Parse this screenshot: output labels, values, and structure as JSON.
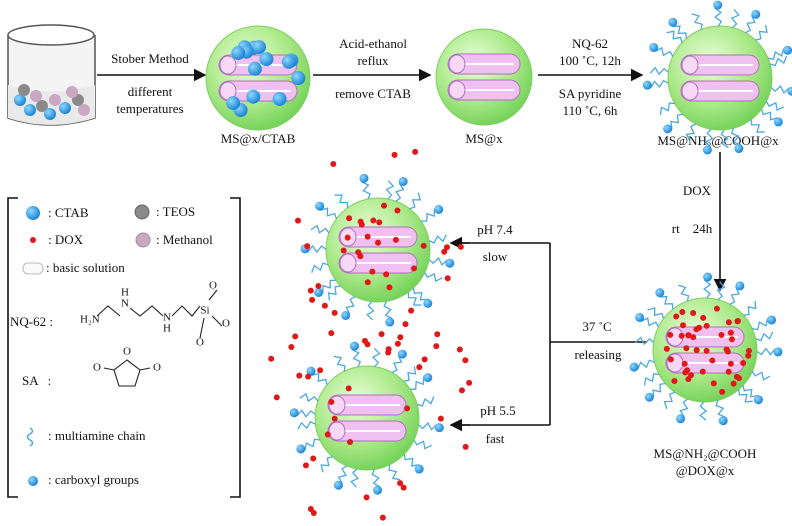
{
  "steps": [
    {
      "above": [
        "Stober Method"
      ],
      "below": [
        "different",
        "temperatures"
      ]
    },
    {
      "above": [
        "Acid-ethanol",
        "reflux"
      ],
      "below": [
        "remove CTAB"
      ]
    },
    {
      "above": [
        "NQ-62",
        "100 ˚C, 12h"
      ],
      "below": [
        "SA pyridine",
        "110 ˚C, 6h"
      ]
    },
    {
      "above": [
        "DOX"
      ],
      "below": [
        "rt    24h"
      ]
    },
    {
      "above": [
        "37 ˚C"
      ],
      "below": [
        "releasing"
      ]
    }
  ],
  "products": [
    {
      "label": [
        "MS@x/CTAB"
      ]
    },
    {
      "label": [
        "MS@x"
      ]
    },
    {
      "label": [
        "MS@NH₂@COOH@x"
      ]
    },
    {
      "label": [
        "MS@NH₂@COOH",
        "@DOX@x"
      ]
    }
  ],
  "release": [
    {
      "condition": "pH 7.4",
      "rate": "slow"
    },
    {
      "condition": "pH 5.5",
      "rate": "fast"
    }
  ],
  "legend": {
    "items": [
      ": CTAB",
      ": TEOS",
      ": DOX",
      ": Methanol",
      ": basic solution",
      ": multiamine chain",
      ": carboxyl groups"
    ],
    "nq62": {
      "label": "NQ-62 :",
      "atoms": [
        "H₂N",
        "N",
        "H",
        "N",
        "H",
        "Si",
        "O",
        "O",
        "O"
      ]
    },
    "sa": {
      "label": "SA   :",
      "atoms": [
        "O",
        "O",
        "O"
      ]
    }
  }
}
